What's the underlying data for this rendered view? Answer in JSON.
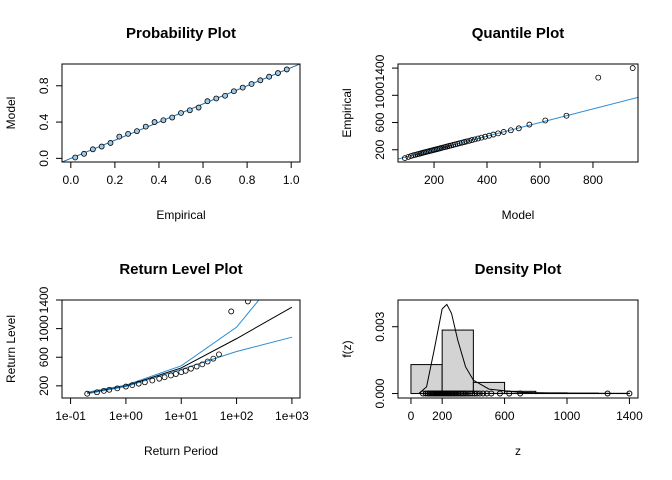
{
  "chart_data": [
    {
      "type": "scatter",
      "title": "Probability Plot",
      "x_label": "Empirical",
      "y_label": "Model",
      "x": [
        0.02,
        0.06,
        0.1,
        0.14,
        0.18,
        0.22,
        0.26,
        0.3,
        0.34,
        0.38,
        0.42,
        0.46,
        0.5,
        0.54,
        0.58,
        0.62,
        0.66,
        0.7,
        0.74,
        0.78,
        0.82,
        0.86,
        0.9,
        0.94,
        0.98
      ],
      "y": [
        0.01,
        0.05,
        0.1,
        0.13,
        0.17,
        0.24,
        0.27,
        0.3,
        0.35,
        0.4,
        0.42,
        0.45,
        0.5,
        0.53,
        0.56,
        0.63,
        0.66,
        0.69,
        0.74,
        0.78,
        0.82,
        0.86,
        0.9,
        0.94,
        0.98
      ],
      "point_fill": "#9ec9e8",
      "diagonal": true,
      "line_color": "#1f6fb0",
      "xlim": [
        -0.04,
        1.04
      ],
      "ylim": [
        -0.04,
        1.04
      ],
      "xticks": [
        {
          "value": 0,
          "label": "0.0"
        },
        0.2,
        0.4,
        0.6,
        0.8,
        {
          "value": 1,
          "label": "1.0"
        }
      ],
      "yticks": [
        {
          "value": 0,
          "label": "0.0"
        },
        0.4,
        0.8
      ]
    },
    {
      "type": "scatter",
      "title": "Quantile Plot",
      "x_label": "Model",
      "y_label": "Empirical",
      "x": [
        90,
        103,
        113,
        122,
        130,
        137,
        144,
        151,
        157,
        163,
        169,
        175,
        181,
        187,
        193,
        199,
        205,
        211,
        217,
        223,
        229,
        236,
        243,
        250,
        257,
        264,
        272,
        280,
        288,
        296,
        305,
        314,
        323,
        333,
        343,
        354,
        366,
        379,
        393,
        408,
        424,
        442,
        463,
        490,
        520,
        560,
        620,
        700,
        820,
        950
      ],
      "y": [
        77,
        95,
        108,
        118,
        126,
        134,
        141,
        148,
        155,
        161,
        167,
        173,
        179,
        185,
        191,
        197,
        203,
        209,
        215,
        221,
        228,
        235,
        242,
        249,
        256,
        263,
        271,
        279,
        287,
        295,
        304,
        313,
        322,
        332,
        342,
        353,
        365,
        378,
        392,
        407,
        423,
        441,
        462,
        486,
        515,
        570,
        630,
        700,
        1260,
        1400
      ],
      "point_fill": "none",
      "diagonal": true,
      "line_color": "#2b8ccf",
      "xlim": [
        64,
        970
      ],
      "ylim": [
        20,
        1460
      ],
      "xticks": [
        200,
        400,
        600,
        800
      ],
      "yticks": [
        200,
        600,
        1000,
        1400
      ]
    },
    {
      "type": "scatter",
      "title": "Return Level Plot",
      "x_label": "Return Period",
      "y_label": "Return Level",
      "xlog": true,
      "x": [
        0.2,
        0.3,
        0.4,
        0.5,
        0.7,
        1,
        1.3,
        1.7,
        2.2,
        3,
        4,
        5,
        6.5,
        8,
        10,
        12,
        15,
        19,
        24,
        30,
        38,
        48,
        80,
        160
      ],
      "y": [
        90,
        110,
        130,
        145,
        165,
        190,
        210,
        230,
        250,
        275,
        300,
        320,
        345,
        365,
        390,
        410,
        440,
        470,
        500,
        540,
        580,
        640,
        1240,
        1380
      ],
      "point_fill": "none",
      "lines": [
        {
          "color": "#000000",
          "x": [
            0.2,
            1,
            10,
            100,
            1000
          ],
          "y": [
            100,
            200,
            450,
            860,
            1300
          ]
        },
        {
          "color": "#2b8ccf",
          "x": [
            0.2,
            1,
            10,
            100,
            300
          ],
          "y": [
            110,
            210,
            480,
            1020,
            1470
          ]
        },
        {
          "color": "#2b8ccf",
          "x": [
            0.2,
            1,
            10,
            100,
            1000
          ],
          "y": [
            90,
            190,
            430,
            680,
            880
          ]
        }
      ],
      "xlim": [
        0.07,
        1400
      ],
      "ylim": [
        30,
        1400
      ],
      "xticks": [
        {
          "value": 0.1,
          "label": "1e-01"
        },
        {
          "value": 1,
          "label": "1e+00"
        },
        {
          "value": 10,
          "label": "1e+01"
        },
        {
          "value": 100,
          "label": "1e+02"
        },
        {
          "value": 1000,
          "label": "1e+03"
        }
      ],
      "yticks": [
        200,
        600,
        1000,
        1400
      ]
    },
    {
      "type": "histogram",
      "title": "Density Plot",
      "x_label": "z",
      "y_label": "f(z)",
      "bins": [
        0,
        200,
        400,
        600,
        800,
        1000,
        1200,
        1400
      ],
      "values": [
        0.0013,
        0.00285,
        0.0005,
        0.0001,
        3e-05,
        2e-05,
        1e-05
      ],
      "color": "#d3d3d3",
      "lines": [
        {
          "color": "#000000",
          "x": [
            50,
            100,
            150,
            200,
            230,
            260,
            300,
            350,
            400,
            500,
            700,
            1000,
            1400
          ],
          "y": [
            0,
            0.0003,
            0.002,
            0.0038,
            0.004,
            0.0036,
            0.0024,
            0.0012,
            0.0006,
            0.0002,
            5e-05,
            1e-05,
            0
          ]
        }
      ],
      "rug": [
        77,
        95,
        108,
        118,
        126,
        134,
        141,
        148,
        155,
        161,
        167,
        173,
        179,
        185,
        191,
        197,
        203,
        209,
        215,
        221,
        228,
        235,
        242,
        249,
        256,
        263,
        271,
        279,
        287,
        295,
        304,
        313,
        322,
        332,
        342,
        353,
        365,
        378,
        392,
        407,
        423,
        441,
        462,
        486,
        515,
        570,
        630,
        700,
        1260,
        1400
      ],
      "xlim": [
        -83,
        1455
      ],
      "ylim": [
        -0.0002,
        0.0042
      ],
      "xticks": [
        0,
        200,
        600,
        1000,
        1400
      ],
      "yticks": [
        {
          "value": 0,
          "label": "0.000"
        },
        {
          "value": 0.003,
          "label": "0.003"
        }
      ]
    }
  ]
}
